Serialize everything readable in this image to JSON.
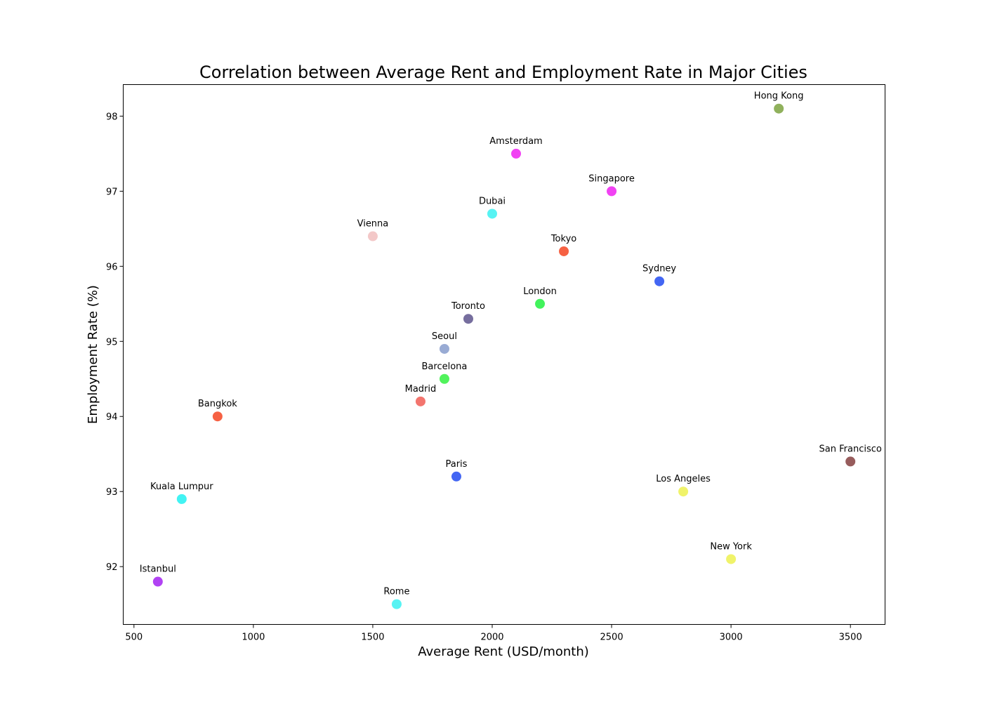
{
  "chart_data": {
    "type": "scatter",
    "title": "Correlation between Average Rent and Employment Rate in Major Cities",
    "xlabel": "Average Rent (USD/month)",
    "ylabel": "Employment Rate (%)",
    "xlim": [
      455,
      3645
    ],
    "ylim": [
      91.23,
      98.42
    ],
    "xticks": [
      500,
      1000,
      1500,
      2000,
      2500,
      3000,
      3500
    ],
    "yticks": [
      92,
      93,
      94,
      95,
      96,
      97,
      98
    ],
    "grid": false,
    "points": [
      {
        "label": "New York",
        "x": 3000,
        "y": 92.1,
        "color": "#eef25a"
      },
      {
        "label": "San Francisco",
        "x": 3500,
        "y": 93.4,
        "color": "#8c4a4a"
      },
      {
        "label": "Los Angeles",
        "x": 2800,
        "y": 93.0,
        "color": "#eef25a"
      },
      {
        "label": "London",
        "x": 2200,
        "y": 95.5,
        "color": "#2ef24a"
      },
      {
        "label": "Paris",
        "x": 1850,
        "y": 93.2,
        "color": "#2f55f2"
      },
      {
        "label": "Tokyo",
        "x": 2300,
        "y": 96.2,
        "color": "#f5502f"
      },
      {
        "label": "Hong Kong",
        "x": 3200,
        "y": 98.1,
        "color": "#84a84a"
      },
      {
        "label": "Singapore",
        "x": 2500,
        "y": 97.0,
        "color": "#f02ef2"
      },
      {
        "label": "Sydney",
        "x": 2700,
        "y": 95.8,
        "color": "#2f55f2"
      },
      {
        "label": "Toronto",
        "x": 1900,
        "y": 95.3,
        "color": "#675e94"
      },
      {
        "label": "Amsterdam",
        "x": 2100,
        "y": 97.5,
        "color": "#f02ef2"
      },
      {
        "label": "Dubai",
        "x": 2000,
        "y": 96.7,
        "color": "#45f2f2"
      },
      {
        "label": "Seoul",
        "x": 1800,
        "y": 94.9,
        "color": "#8ea2cf"
      },
      {
        "label": "Barcelona",
        "x": 1800,
        "y": 94.5,
        "color": "#3ef24a"
      },
      {
        "label": "Madrid",
        "x": 1700,
        "y": 94.2,
        "color": "#f2665e"
      },
      {
        "label": "Vienna",
        "x": 1500,
        "y": 96.4,
        "color": "#f2c2c2"
      },
      {
        "label": "Rome",
        "x": 1600,
        "y": 91.5,
        "color": "#45f2f2"
      },
      {
        "label": "Bangkok",
        "x": 850,
        "y": 94.0,
        "color": "#f5502f"
      },
      {
        "label": "Kuala Lumpur",
        "x": 700,
        "y": 92.9,
        "color": "#2ef2f2"
      },
      {
        "label": "Istanbul",
        "x": 600,
        "y": 91.8,
        "color": "#a92ef2"
      }
    ]
  }
}
